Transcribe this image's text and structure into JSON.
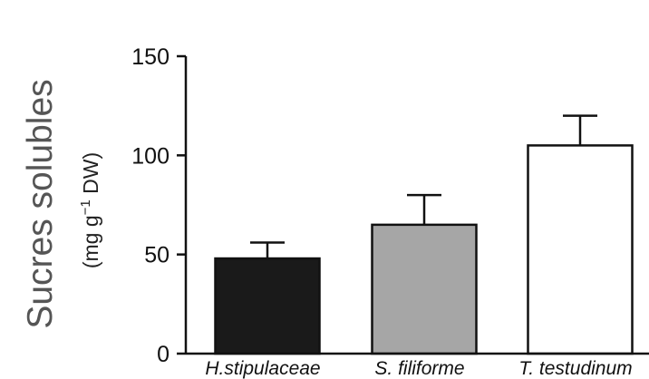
{
  "chart_data": {
    "type": "bar",
    "categories": [
      "H.stipulaceae",
      "S. filiforme",
      "T. testudinum"
    ],
    "values": [
      48,
      65,
      105
    ],
    "errors": [
      8,
      15,
      15
    ],
    "bar_colors": [
      "#1a1a1a",
      "#a6a6a6",
      "#ffffff"
    ],
    "ylabel": "Sucres solubles",
    "ylabel_unit_prefix": "(mg g",
    "ylabel_unit_sup": "−1",
    "ylabel_unit_suffix": " DW)",
    "ylim": [
      0,
      150
    ],
    "yticks": [
      0,
      50,
      100,
      150
    ],
    "ytick_labels": [
      "0",
      "50",
      "100",
      "150"
    ],
    "grid": false,
    "legend": "none"
  }
}
